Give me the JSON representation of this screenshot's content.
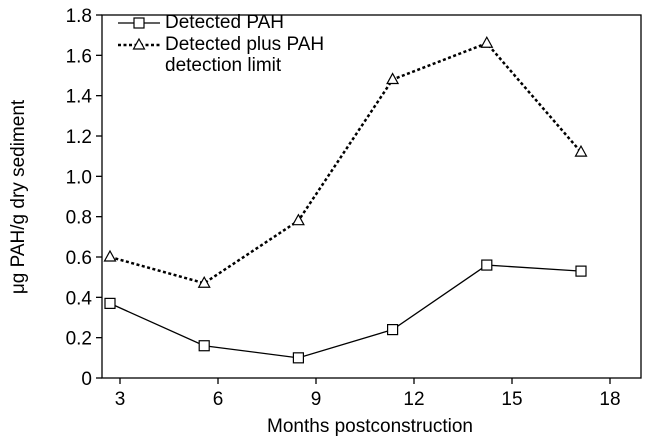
{
  "chart_data": {
    "type": "line",
    "x_label": "Months postconstruction",
    "y_label": "μg PAH/g dry sediment",
    "categories": [
      "3",
      "6",
      "9",
      "12",
      "15",
      "18"
    ],
    "series": [
      {
        "name": "Detected PAH",
        "color": "#000000",
        "marker": "square",
        "dash": "solid",
        "values": [
          0.37,
          0.16,
          0.1,
          0.24,
          0.56,
          0.53
        ]
      },
      {
        "name": "Detected plus PAH detection limit",
        "color": "#000000",
        "marker": "triangle",
        "dash": "dotted",
        "values": [
          0.6,
          0.47,
          0.78,
          1.48,
          1.66,
          1.12
        ]
      }
    ],
    "ylim": [
      0,
      1.8
    ],
    "yticks": [
      0,
      0.2,
      0.4,
      0.6,
      0.8,
      {
        "value": 1,
        "label": "1.0"
      },
      1.2,
      1.4,
      1.6,
      1.8
    ],
    "grid": false,
    "legend": "upper left"
  }
}
